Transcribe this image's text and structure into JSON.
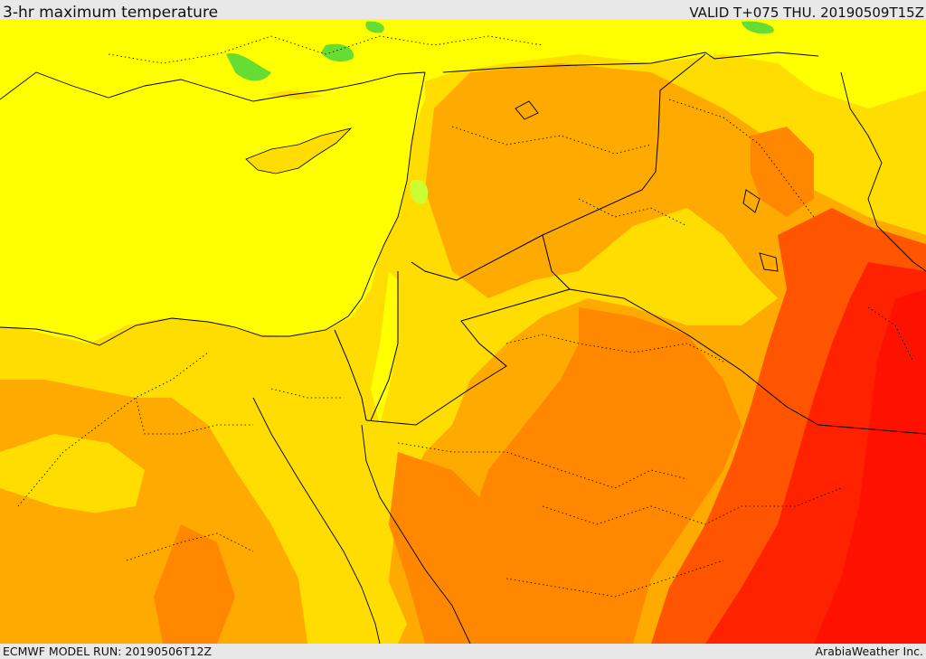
{
  "header": {
    "title": "3-hr maximum temperature",
    "valid_time": "VALID T+075 THU. 20190509T15Z"
  },
  "footer": {
    "model_run": "ECMWF MODEL RUN: 20190506T12Z",
    "credit": "ArabiaWeather Inc."
  },
  "map": {
    "field": "3-hr maximum temperature",
    "colors": {
      "green": "#66dd33",
      "light_green": "#ccff33",
      "yellow": "#ffff00",
      "gold": "#ffdd00",
      "light_orange": "#ffaa00",
      "orange": "#ff8800",
      "red_orange": "#ff5500",
      "red": "#ff1100",
      "border": "#000000"
    }
  }
}
